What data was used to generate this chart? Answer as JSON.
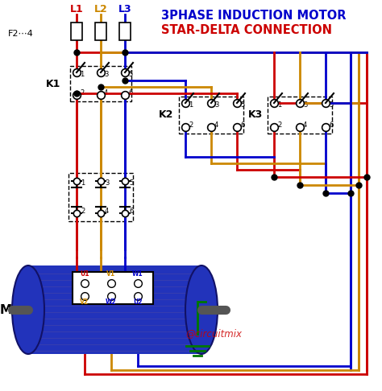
{
  "title_line1": "3PHASE INDUCTION MOTOR",
  "title_line2": "STAR-DELTA CONNECTION",
  "title_color1": "#0000cc",
  "title_color2": "#cc0000",
  "bg_color": "#ffffff",
  "wire_red": "#cc0000",
  "wire_yellow": "#cc8800",
  "wire_blue": "#0000cc",
  "wire_green": "#007700",
  "label_F": "F2⋯4",
  "label_K1": "K1",
  "label_K2": "K2",
  "label_K3": "K3",
  "label_M": "M",
  "watermark": "@circuitmix",
  "motor_color": "#2233bb",
  "motor_dark": "#111166"
}
